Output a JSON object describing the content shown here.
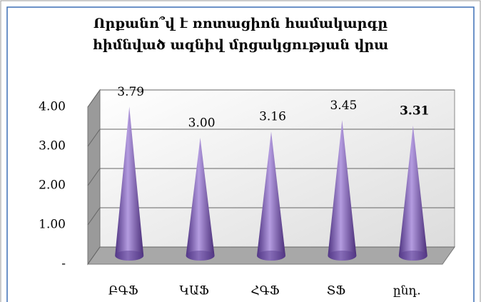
{
  "chart_data": {
    "type": "cone",
    "title": "Որքանո՞վ է ռոտացիոն համակարգը հիմնված ազնիվ մրցակցության վրա",
    "categories": [
      "ԲԳՖ",
      "ԿԱՖ",
      "ՀԳՖ",
      "ՏՖ",
      "ընդ."
    ],
    "values": [
      3.79,
      3.0,
      3.16,
      3.45,
      3.31
    ],
    "value_labels": [
      "3.79",
      "3.00",
      "3.16",
      "3.45",
      "3.31"
    ],
    "color": "#8a6cc4",
    "ylim": [
      0,
      4
    ],
    "yticks": [
      {
        "value": 0,
        "label": "-"
      },
      {
        "value": 1,
        "label": "1.00"
      },
      {
        "value": 2,
        "label": "2.00"
      },
      {
        "value": 3,
        "label": "3.00"
      },
      {
        "value": 4,
        "label": "4.00"
      }
    ],
    "grid": true
  }
}
